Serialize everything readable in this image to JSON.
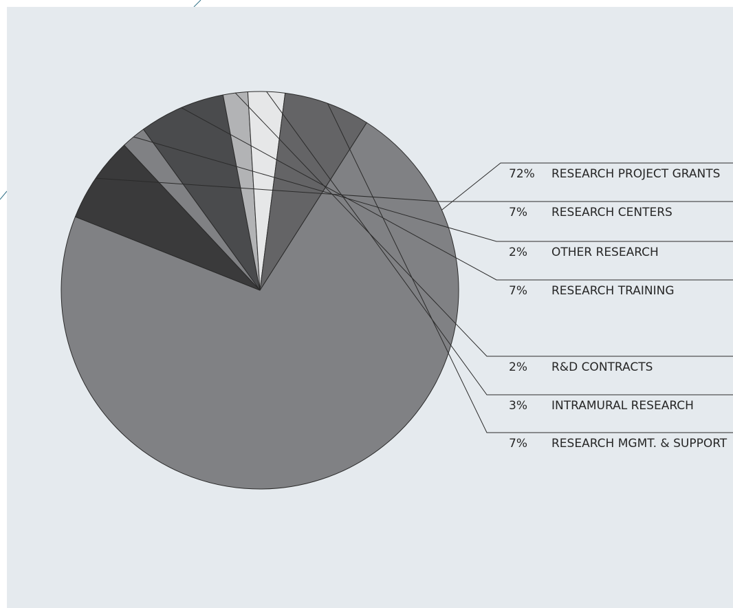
{
  "chart_data": {
    "type": "pie",
    "colors": {
      "background_panel": "#e5eaee",
      "slice_outline": "#2a2a2a",
      "leader_line": "#2a2a2a",
      "corner_accent": "#2f6f86"
    },
    "slices": [
      {
        "pct_label": "72%",
        "label": "RESEARCH PROJECT GRANTS",
        "value": 72,
        "color": "#808184"
      },
      {
        "pct_label": "7%",
        "label": "RESEARCH CENTERS",
        "value": 7,
        "color": "#3a3a3b"
      },
      {
        "pct_label": "2%",
        "label": "OTHER RESEARCH",
        "value": 2,
        "color": "#808184"
      },
      {
        "pct_label": "7%",
        "label": "RESEARCH TRAINING",
        "value": 7,
        "color": "#4a4b4d"
      },
      {
        "pct_label": "2%",
        "label": "R&D CONTRACTS",
        "value": 2,
        "color": "#b2b3b5"
      },
      {
        "pct_label": "3%",
        "label": "INTRAMURAL RESEARCH",
        "value": 3,
        "color": "#e6e7e8"
      },
      {
        "pct_label": "7%",
        "label": "RESEARCH MGMT. & SUPPORT",
        "value": 7,
        "color": "#646466"
      }
    ]
  }
}
